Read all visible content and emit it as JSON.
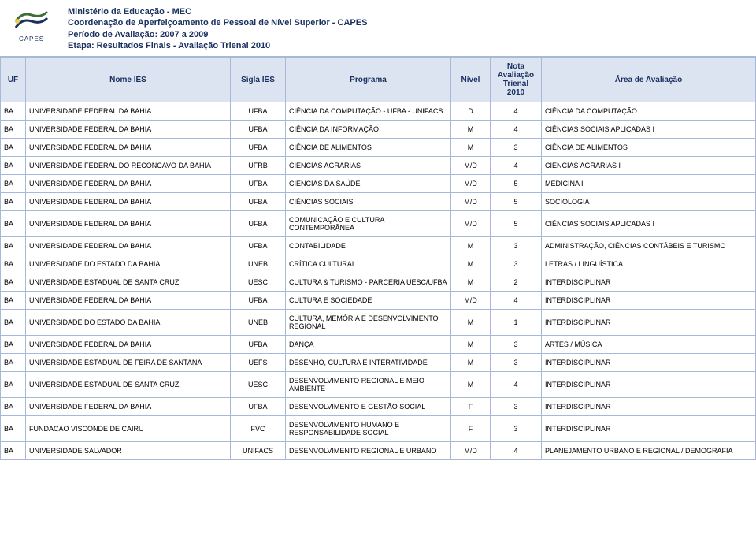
{
  "header": {
    "ministry": "Ministério da Educação - MEC",
    "coord": "Coordenação de Aperfeiçoamento de Pessoal de Nível Superior - CAPES",
    "periodo": "Período de Avaliação:  2007 a 2009",
    "etapa": "Etapa:  Resultados Finais - Avaliação Trienal 2010",
    "logo_label": "CAPES"
  },
  "columns": {
    "uf": "UF",
    "nome": "Nome IES",
    "sigla": "Sigla IES",
    "programa": "Programa",
    "nivel": "Nível",
    "nota": "Nota Avaliação Trienal 2010",
    "area": "Área de Avaliação"
  },
  "rows": [
    {
      "uf": "BA",
      "nome": "UNIVERSIDADE FEDERAL DA BAHIA",
      "sigla": "UFBA",
      "programa": "CIÊNCIA DA COMPUTAÇÃO - UFBA - UNIFACS",
      "nivel": "D",
      "nota": "4",
      "area": "CIÊNCIA DA COMPUTAÇÃO"
    },
    {
      "uf": "BA",
      "nome": "UNIVERSIDADE FEDERAL DA BAHIA",
      "sigla": "UFBA",
      "programa": "CIÊNCIA DA INFORMAÇÃO",
      "nivel": "M",
      "nota": "4",
      "area": "CIÊNCIAS SOCIAIS APLICADAS I"
    },
    {
      "uf": "BA",
      "nome": "UNIVERSIDADE FEDERAL DA BAHIA",
      "sigla": "UFBA",
      "programa": "CIÊNCIA DE ALIMENTOS",
      "nivel": "M",
      "nota": "3",
      "area": "CIÊNCIA DE ALIMENTOS"
    },
    {
      "uf": "BA",
      "nome": "UNIVERSIDADE FEDERAL DO RECONCAVO DA BAHIA",
      "sigla": "UFRB",
      "programa": "CIÊNCIAS AGRÁRIAS",
      "nivel": "M/D",
      "nota": "4",
      "area": "CIÊNCIAS AGRÁRIAS I"
    },
    {
      "uf": "BA",
      "nome": "UNIVERSIDADE FEDERAL DA BAHIA",
      "sigla": "UFBA",
      "programa": "CIÊNCIAS DA SAÚDE",
      "nivel": "M/D",
      "nota": "5",
      "area": "MEDICINA I"
    },
    {
      "uf": "BA",
      "nome": "UNIVERSIDADE FEDERAL DA BAHIA",
      "sigla": "UFBA",
      "programa": "CIÊNCIAS SOCIAIS",
      "nivel": "M/D",
      "nota": "5",
      "area": "SOCIOLOGIA"
    },
    {
      "uf": "BA",
      "nome": "UNIVERSIDADE FEDERAL DA BAHIA",
      "sigla": "UFBA",
      "programa": "COMUNICAÇÃO E CULTURA CONTEMPORÂNEA",
      "nivel": "M/D",
      "nota": "5",
      "area": "CIÊNCIAS SOCIAIS APLICADAS I"
    },
    {
      "uf": "BA",
      "nome": "UNIVERSIDADE FEDERAL DA BAHIA",
      "sigla": "UFBA",
      "programa": "CONTABILIDADE",
      "nivel": "M",
      "nota": "3",
      "area": "ADMINISTRAÇÃO, CIÊNCIAS CONTÁBEIS E TURISMO"
    },
    {
      "uf": "BA",
      "nome": "UNIVERSIDADE DO ESTADO DA BAHIA",
      "sigla": "UNEB",
      "programa": "CRÍTICA CULTURAL",
      "nivel": "M",
      "nota": "3",
      "area": "LETRAS / LINGUÍSTICA"
    },
    {
      "uf": "BA",
      "nome": "UNIVERSIDADE ESTADUAL DE SANTA CRUZ",
      "sigla": "UESC",
      "programa": "CULTURA & TURISMO -  PARCERIA UESC/UFBA",
      "nivel": "M",
      "nota": "2",
      "area": "INTERDISCIPLINAR"
    },
    {
      "uf": "BA",
      "nome": "UNIVERSIDADE FEDERAL DA BAHIA",
      "sigla": "UFBA",
      "programa": "CULTURA E SOCIEDADE",
      "nivel": "M/D",
      "nota": "4",
      "area": "INTERDISCIPLINAR"
    },
    {
      "uf": "BA",
      "nome": "UNIVERSIDADE DO ESTADO DA BAHIA",
      "sigla": "UNEB",
      "programa": "CULTURA, MEMÓRIA E DESENVOLVIMENTO REGIONAL",
      "nivel": "M",
      "nota": "1",
      "area": "INTERDISCIPLINAR"
    },
    {
      "uf": "BA",
      "nome": "UNIVERSIDADE FEDERAL DA BAHIA",
      "sigla": "UFBA",
      "programa": "DANÇA",
      "nivel": "M",
      "nota": "3",
      "area": "ARTES / MÚSICA"
    },
    {
      "uf": "BA",
      "nome": "UNIVERSIDADE ESTADUAL DE FEIRA DE SANTANA",
      "sigla": "UEFS",
      "programa": "DESENHO, CULTURA E INTERATIVIDADE",
      "nivel": "M",
      "nota": "3",
      "area": "INTERDISCIPLINAR"
    },
    {
      "uf": "BA",
      "nome": "UNIVERSIDADE ESTADUAL DE SANTA CRUZ",
      "sigla": "UESC",
      "programa": "DESENVOLVIMENTO  REGIONAL  E MEIO AMBIENTE",
      "nivel": "M",
      "nota": "4",
      "area": "INTERDISCIPLINAR"
    },
    {
      "uf": "BA",
      "nome": "UNIVERSIDADE FEDERAL DA BAHIA",
      "sigla": "UFBA",
      "programa": "DESENVOLVIMENTO E GESTÃO SOCIAL",
      "nivel": "F",
      "nota": "3",
      "area": "INTERDISCIPLINAR"
    },
    {
      "uf": "BA",
      "nome": "FUNDACAO VISCONDE DE CAIRU",
      "sigla": "FVC",
      "programa": "DESENVOLVIMENTO HUMANO E RESPONSABILIDADE SOCIAL",
      "nivel": "F",
      "nota": "3",
      "area": "INTERDISCIPLINAR"
    },
    {
      "uf": "BA",
      "nome": "UNIVERSIDADE SALVADOR",
      "sigla": "UNIFACS",
      "programa": "DESENVOLVIMENTO REGIONAL E URBANO",
      "nivel": "M/D",
      "nota": "4",
      "area": "PLANEJAMENTO URBANO E REGIONAL / DEMOGRAFIA"
    }
  ],
  "colors": {
    "header_bg": "#dbe4f0",
    "border": "#a8b8d8",
    "brand": "#1a3060"
  }
}
